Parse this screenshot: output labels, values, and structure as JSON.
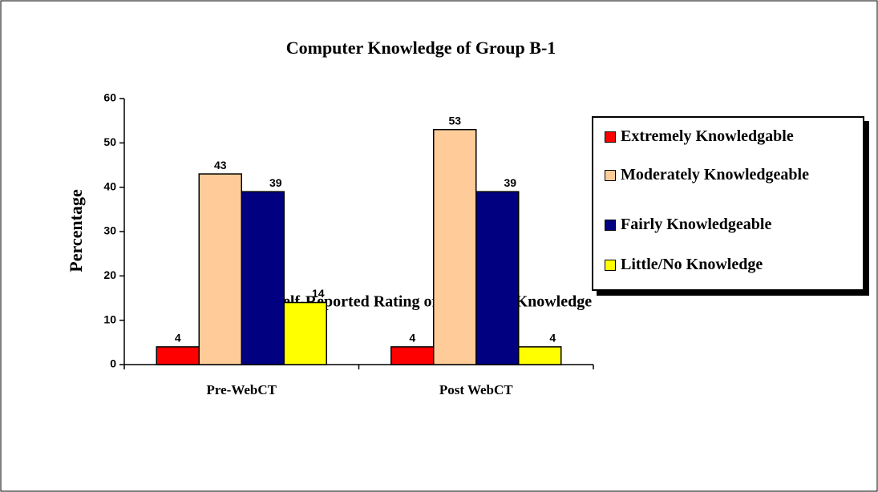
{
  "chart_data": {
    "type": "bar",
    "title": "Computer Knowledge of Group B-1",
    "x_label": "Self-Reported Rating of Computer Knowledge",
    "y_label": "Percentage",
    "categories": [
      "Pre-WebCT",
      "Post WebCT"
    ],
    "series": [
      {
        "name": "Extremely Knowledgable",
        "color": "#ff0000",
        "values": [
          4,
          4
        ]
      },
      {
        "name": "Moderately Knowledgeable",
        "color": "#ffcc99",
        "values": [
          43,
          53
        ]
      },
      {
        "name": "Fairly Knowledgeable",
        "color": "#000080",
        "values": [
          39,
          39
        ]
      },
      {
        "name": "Little/No Knowledge",
        "color": "#ffff00",
        "values": [
          14,
          4
        ]
      }
    ],
    "ylim": [
      0,
      60
    ],
    "yticks": [
      0,
      10,
      20,
      30,
      40,
      50,
      60
    ],
    "legend": "right"
  }
}
